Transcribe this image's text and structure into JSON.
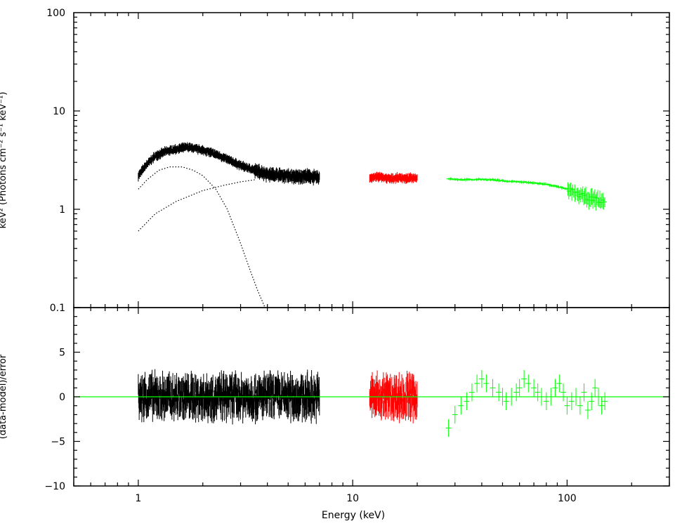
{
  "chart_data": [
    {
      "type": "scatter",
      "panel": "top",
      "xlabel": "",
      "ylabel": "keV² (Photons cm⁻² s⁻¹ keV⁻¹)",
      "x_scale": "log",
      "y_scale": "log",
      "xlim": [
        0.5,
        300
      ],
      "ylim": [
        0.1,
        100
      ],
      "yticks": [
        {
          "value": 0.1,
          "label": "0.1"
        },
        {
          "value": 1,
          "label": "1"
        },
        {
          "value": 10,
          "label": "10"
        },
        {
          "value": 100,
          "label": "100"
        }
      ],
      "series": [
        {
          "color": "#000000",
          "style": "data",
          "x": [
            1.0,
            1.1,
            1.2,
            1.35,
            1.5,
            1.7,
            1.9,
            2.1,
            2.4,
            2.7,
            3.0,
            3.5,
            4.0,
            4.5,
            5.0,
            5.5,
            6.0,
            6.5,
            7.0
          ],
          "y": [
            2.2,
            2.9,
            3.5,
            3.9,
            4.1,
            4.3,
            4.1,
            3.9,
            3.5,
            3.1,
            2.8,
            2.5,
            2.3,
            2.25,
            2.2,
            2.15,
            2.2,
            2.15,
            2.1
          ]
        },
        {
          "color": "#ff0000",
          "style": "data",
          "x": [
            12,
            13,
            14,
            15,
            16,
            17,
            18,
            19,
            20
          ],
          "y": [
            2.1,
            2.15,
            2.1,
            2.05,
            2.1,
            2.1,
            2.05,
            2.1,
            2.1
          ]
        },
        {
          "color": "#00ff00",
          "style": "data",
          "x": [
            28,
            32,
            36,
            40,
            45,
            50,
            55,
            60,
            70,
            80,
            90,
            100,
            110,
            120,
            130,
            140,
            150
          ],
          "y": [
            2.05,
            2.0,
            2.0,
            2.02,
            2.0,
            1.95,
            1.92,
            1.9,
            1.85,
            1.8,
            1.7,
            1.6,
            1.45,
            1.35,
            1.3,
            1.25,
            1.2
          ]
        },
        {
          "color": "#000000",
          "style": "model-dotted",
          "x": [
            1.0,
            1.1,
            1.25,
            1.4,
            1.6,
            1.8,
            2.0,
            2.3,
            2.6,
            3.0,
            3.3,
            3.6,
            3.9
          ],
          "y": [
            1.6,
            2.0,
            2.5,
            2.7,
            2.7,
            2.5,
            2.2,
            1.6,
            1.0,
            0.45,
            0.25,
            0.15,
            0.1
          ]
        },
        {
          "color": "#000000",
          "style": "model-dotted",
          "x": [
            1.0,
            1.2,
            1.5,
            2.0,
            2.5,
            3.0,
            3.5
          ],
          "y": [
            0.6,
            0.9,
            1.2,
            1.55,
            1.75,
            1.9,
            2.0
          ]
        }
      ]
    },
    {
      "type": "scatter",
      "panel": "bottom",
      "xlabel": "Energy (keV)",
      "ylabel": "(data-model)/error",
      "x_scale": "log",
      "y_scale": "linear",
      "xlim": [
        0.5,
        300
      ],
      "ylim": [
        -10,
        10
      ],
      "xticks": [
        {
          "value": 1,
          "label": "1"
        },
        {
          "value": 10,
          "label": "10"
        },
        {
          "value": 100,
          "label": "100"
        }
      ],
      "yticks": [
        {
          "value": -10,
          "label": "−10"
        },
        {
          "value": -5,
          "label": "−5"
        },
        {
          "value": 0,
          "label": "0"
        },
        {
          "value": 5,
          "label": "5"
        }
      ],
      "reference_line": {
        "y": 0,
        "color": "#00ff00"
      },
      "series": [
        {
          "color": "#000000",
          "style": "residual",
          "xmin": 1.0,
          "xmax": 7.0,
          "spread": 2.5
        },
        {
          "color": "#ff0000",
          "style": "residual",
          "xmin": 12,
          "xmax": 20,
          "spread": 2.5
        },
        {
          "color": "#00ff00",
          "style": "residual-binned",
          "x": [
            28,
            30,
            32,
            34,
            36,
            38,
            40,
            42,
            45,
            48,
            50,
            52,
            55,
            58,
            60,
            63,
            66,
            70,
            73,
            76,
            80,
            84,
            88,
            92,
            96,
            100,
            105,
            110,
            115,
            120,
            125,
            130,
            135,
            140,
            145,
            150
          ],
          "y": [
            -3.5,
            -2.0,
            -1.0,
            -0.5,
            0.5,
            1.5,
            2.0,
            1.5,
            1.0,
            0.5,
            0.0,
            -0.5,
            0.0,
            0.5,
            1.0,
            2.0,
            1.5,
            1.0,
            0.5,
            0.0,
            -0.5,
            0.0,
            1.0,
            1.5,
            0.5,
            -1.0,
            -0.5,
            0.0,
            -1.0,
            0.5,
            -1.5,
            -0.5,
            1.0,
            0.0,
            -1.0,
            -0.5
          ]
        }
      ]
    }
  ]
}
